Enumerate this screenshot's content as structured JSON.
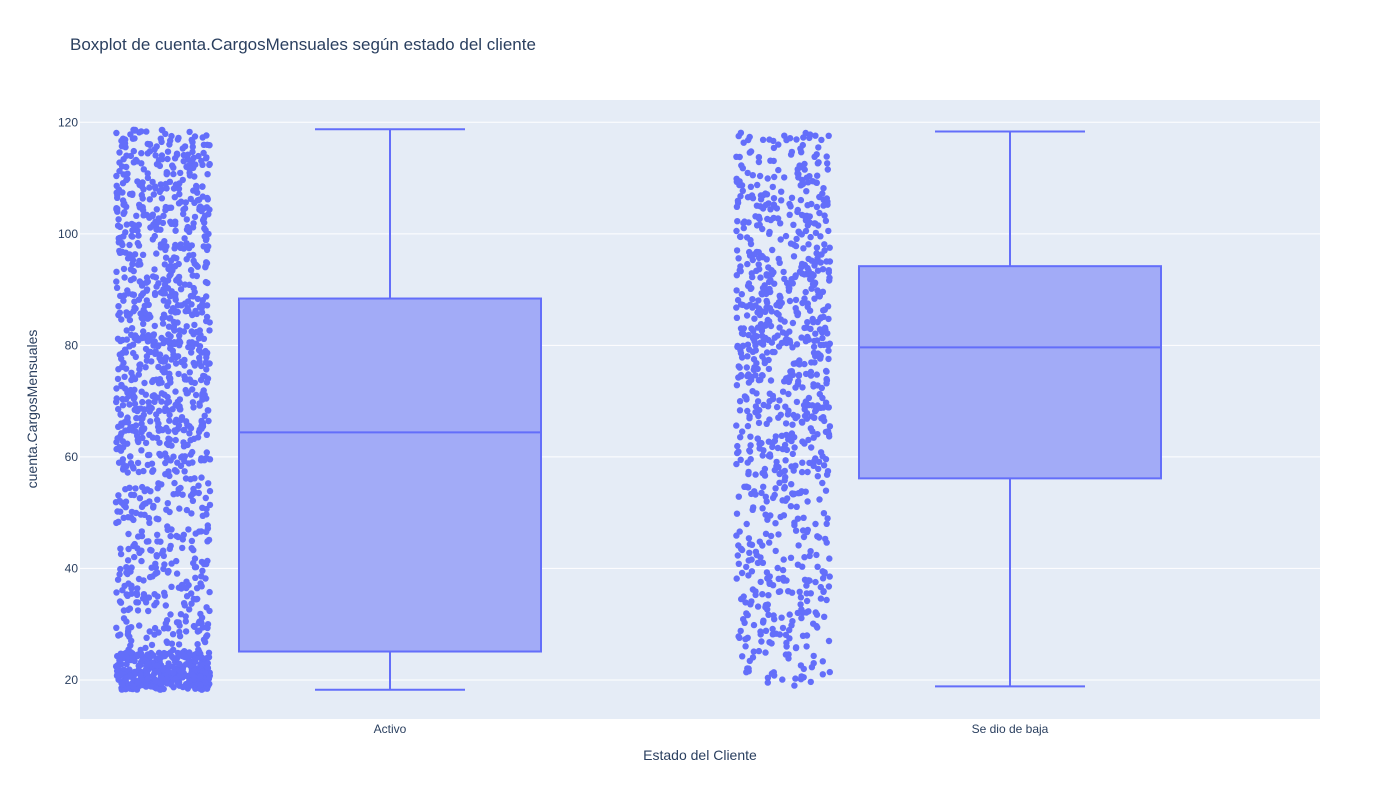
{
  "chart_data": {
    "type": "box",
    "title": "Boxplot de cuenta.CargosMensuales según estado del cliente",
    "xlabel": "Estado del Cliente",
    "ylabel": "cuenta.CargosMensuales",
    "ylim": [
      13,
      124
    ],
    "yticks": [
      20,
      40,
      60,
      80,
      100,
      120
    ],
    "grid": true,
    "show_points": "all",
    "colors": {
      "marker": "#636efa",
      "box_fill": "#a2abf7",
      "box_line": "#636efa",
      "plot_bg": "#e5ecf6",
      "grid": "#ffffff",
      "text": "#2a3f5f"
    },
    "categories": [
      "Activo",
      "Se dio de baja"
    ],
    "boxes": [
      {
        "category": "Activo",
        "min": 18.25,
        "q1": 25.1,
        "median": 64.4,
        "q3": 88.4,
        "max": 118.75
      },
      {
        "category": "Se dio de baja",
        "min": 18.85,
        "q1": 56.15,
        "median": 79.65,
        "q3": 94.2,
        "max": 118.35
      }
    ]
  }
}
